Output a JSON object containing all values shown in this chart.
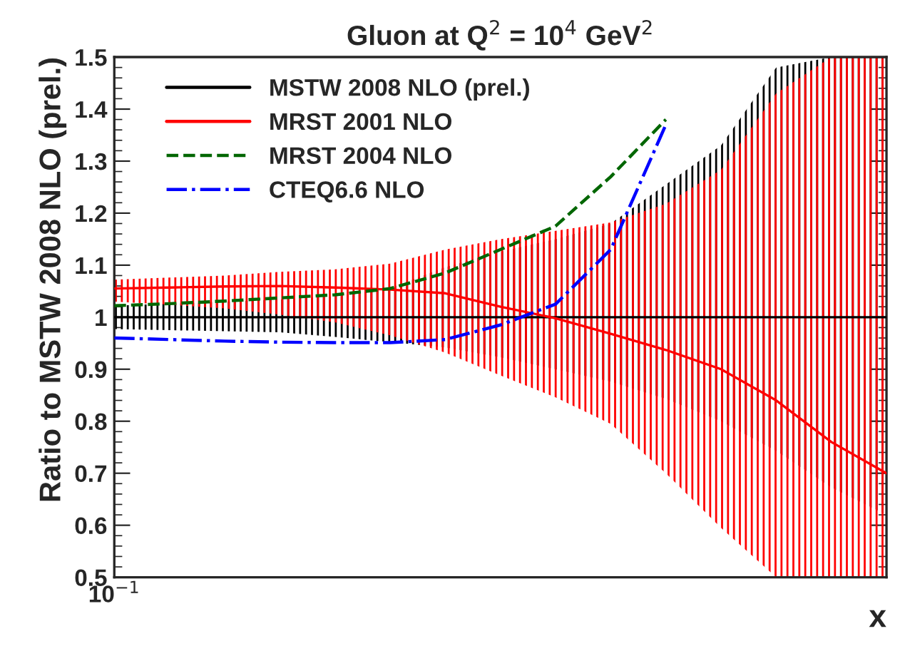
{
  "chart_data": {
    "type": "line",
    "title": "Gluon at Q$^{2}$ = 10$^{4}$ GeV$^{2}$",
    "xlabel": "x",
    "ylabel": "Ratio to MSTW 2008 NLO (prel.)",
    "annotations": [
      "10$^{−1}$"
    ],
    "categories": [
      null,
      null,
      null,
      null,
      null,
      null,
      null,
      null,
      null,
      null,
      null,
      null,
      null,
      null,
      null
    ],
    "ylim": [
      0.5,
      1.5
    ],
    "yticks": [
      0.5,
      0.6,
      0.7,
      0.8,
      0.9,
      1,
      1.1,
      1.2,
      1.3,
      1.4,
      1.5
    ],
    "legend": "top left",
    "marker": "none",
    "series": [
      {
        "name": "MSTW 2008 NLO (prel.)",
        "color": "#000000",
        "line_style": "solid",
        "values": [
          1,
          1,
          1,
          1,
          1,
          1,
          1,
          1,
          1,
          1,
          1,
          1,
          1,
          1,
          1
        ],
        "lower": [
          0.977,
          0.975,
          0.973,
          0.971,
          0.962,
          0.952,
          0.942,
          0.923,
          0.9,
          0.876,
          0.843,
          0.8,
          0.743,
          0.673,
          0.62
        ],
        "upper": [
          1.022,
          1.026,
          1.03,
          1.034,
          1.04,
          1.056,
          1.096,
          1.126,
          1.15,
          1.18,
          1.255,
          1.33,
          1.48,
          1.5,
          1.5
        ]
      },
      {
        "name": "MRST 2001 NLO",
        "color": "#ff0000",
        "line_style": "solid",
        "values": [
          1.055,
          1.057,
          1.059,
          1.06,
          1.057,
          1.053,
          1.046,
          1.02,
          0.998,
          0.968,
          0.937,
          0.9,
          0.84,
          0.76,
          0.7
        ],
        "lower": [
          1.03,
          1.024,
          1.017,
          1.005,
          0.99,
          0.965,
          0.932,
          0.888,
          0.846,
          0.795,
          0.7,
          0.595,
          0.5,
          0.5,
          0.5
        ],
        "upper": [
          1.072,
          1.076,
          1.08,
          1.087,
          1.092,
          1.103,
          1.13,
          1.15,
          1.166,
          1.182,
          1.218,
          1.283,
          1.43,
          1.5,
          1.5
        ]
      },
      {
        "name": "MRST 2004 NLO",
        "color": "#006600",
        "line_style": "dashed",
        "values": [
          1.022,
          1.026,
          1.031,
          1.037,
          1.043,
          1.055,
          1.085,
          1.13,
          1.175,
          1.27,
          1.38,
          null,
          null,
          null,
          null
        ]
      },
      {
        "name": "CTEQ6.6 NLO",
        "color": "#0000ff",
        "line_style": "dashdot",
        "values": [
          0.96,
          0.957,
          0.954,
          0.952,
          0.951,
          0.951,
          0.957,
          0.985,
          1.025,
          1.13,
          1.37,
          null,
          null,
          null,
          null
        ]
      }
    ]
  }
}
